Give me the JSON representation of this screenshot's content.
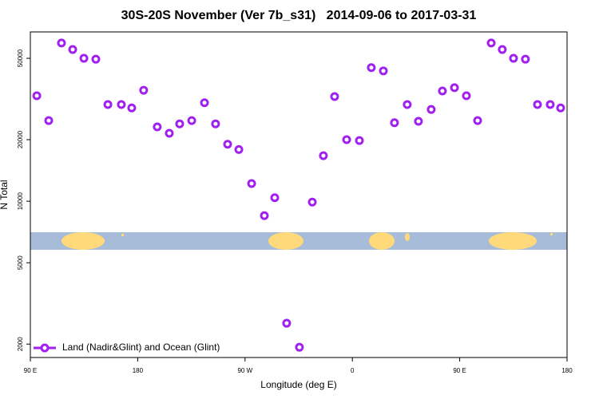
{
  "chart_data": {
    "type": "scatter",
    "title": "30S-20S November (Ver 7b_s31)   2014-09-06 to 2017-03-31",
    "x_label": "Longitude (deg E)",
    "y_label": "N Total",
    "log_y": true,
    "legend": "bottom-left",
    "xlim": [
      90,
      540
    ],
    "xticks": [
      {
        "value": 90,
        "label": "90 E"
      },
      180,
      {
        "value": 270,
        "label": "90 W"
      },
      {
        "value": 360,
        "label": "0"
      },
      {
        "value": 450,
        "label": "90 E"
      },
      {
        "value": 540,
        "label": "180"
      }
    ],
    "ylim": [
      1720,
      67300
    ],
    "yticks": [
      2000,
      5000,
      10000,
      20000,
      50000
    ],
    "series": [
      {
        "name": "Land (Nadir&Glint) and Ocean (Glint)",
        "color": "#a020f0",
        "x": [
          95.4,
          105.4,
          116.1,
          125.5,
          134.9,
          144.9,
          155,
          166.3,
          175,
          185,
          196.4,
          206.5,
          215.2,
          225.3,
          236,
          245.3,
          255.4,
          264.8,
          275.5,
          286.2,
          294.9,
          304.9,
          315.6,
          326.4,
          335.7,
          345.1,
          355.2,
          365.9,
          375.9,
          386,
          395.3,
          406,
          415.4,
          426.1,
          435.5,
          445.6,
          455.6,
          465,
          476.4,
          485.7,
          495.1,
          505.1,
          515.2,
          525.9,
          534.6
        ],
        "values": [
          32800,
          24800,
          59400,
          55200,
          50000,
          49500,
          29700,
          29700,
          28600,
          34900,
          23100,
          21500,
          23900,
          24800,
          30300,
          23900,
          19000,
          17900,
          12200,
          8500,
          10400,
          2530,
          1930,
          9900,
          16700,
          32500,
          20000,
          19800,
          45000,
          43400,
          24200,
          29700,
          24600,
          28100,
          34600,
          35900,
          32800,
          24800,
          59400,
          55200,
          50000,
          49500,
          29700,
          29700,
          28600
        ]
      }
    ]
  }
}
